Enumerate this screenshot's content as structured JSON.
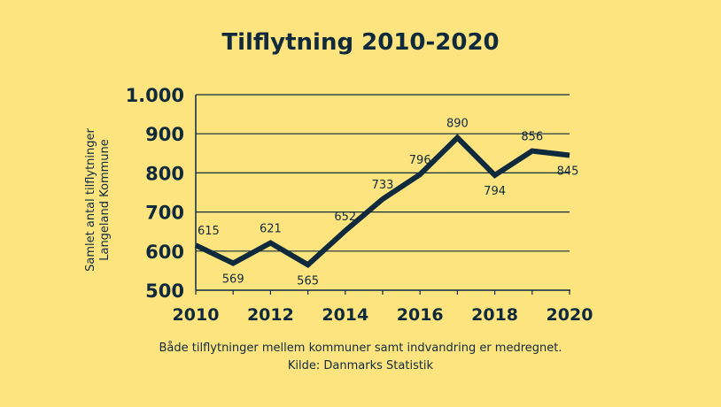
{
  "chart_data": {
    "type": "line",
    "title": "Tilflytning 2010-2020",
    "ylabel_lines": [
      "Samlet antal tilflytninger",
      "Langeland Kommune"
    ],
    "xlabel": "",
    "x": [
      2010,
      2011,
      2012,
      2013,
      2014,
      2015,
      2016,
      2017,
      2018,
      2019,
      2020
    ],
    "values": [
      615,
      569,
      621,
      565,
      652,
      733,
      796,
      890,
      794,
      856,
      845
    ],
    "data_labels": [
      "615",
      "569",
      "621",
      "565",
      "652",
      "733",
      "796",
      "890",
      "794",
      "856",
      "845"
    ],
    "xticks": [
      2010,
      2012,
      2014,
      2016,
      2018,
      2020
    ],
    "xtick_labels": [
      "2010",
      "2012",
      "2014",
      "2016",
      "2018",
      "2020"
    ],
    "yticks": [
      500,
      600,
      700,
      800,
      900,
      1000
    ],
    "ytick_labels": [
      "500",
      "600",
      "700",
      "800",
      "900",
      "1.000"
    ],
    "ylim": [
      500,
      1000
    ],
    "xlim": [
      2010,
      2020
    ],
    "grid": true,
    "line_color": "#0f2a3d",
    "background_color": "#fde47f"
  },
  "footnote": {
    "line1": "Både tilflytninger mellem kommuner samt indvandring er medregnet.",
    "line2": "Kilde: Danmarks Statistik"
  }
}
